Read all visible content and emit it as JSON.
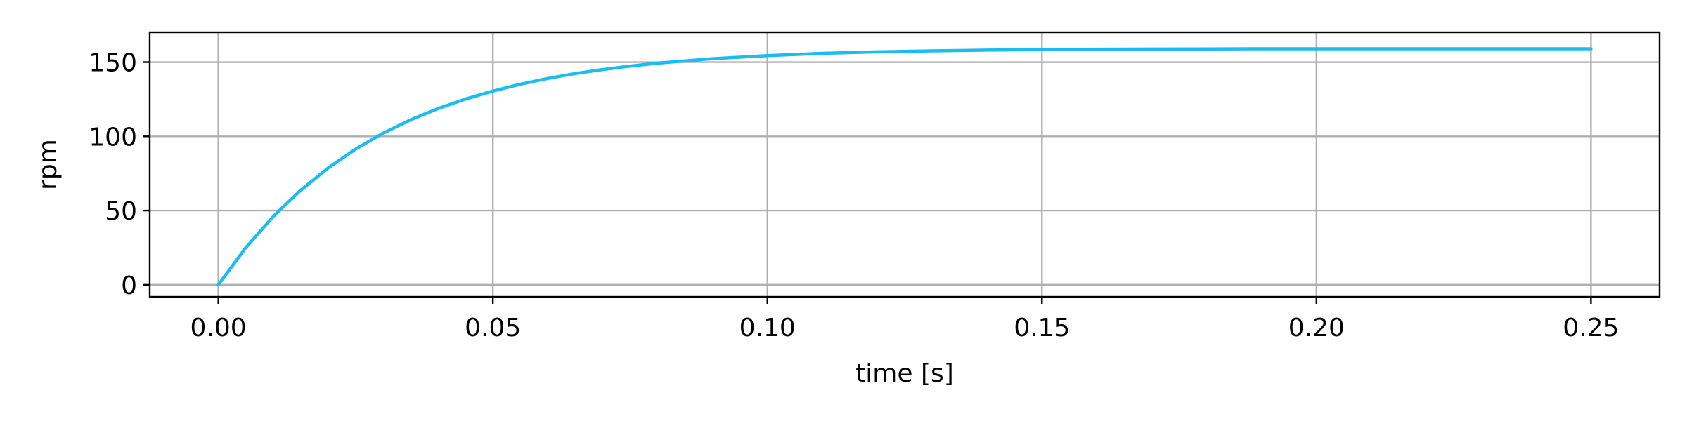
{
  "chart_data": {
    "type": "line",
    "xlabel": "time [s]",
    "ylabel": "rpm",
    "xlim": [
      -0.0125,
      0.2625
    ],
    "ylim": [
      -8.1,
      170.1
    ],
    "xticks": [
      0.0,
      0.05,
      0.1,
      0.15,
      0.2,
      0.25
    ],
    "xtick_labels": [
      "0.00",
      "0.05",
      "0.10",
      "0.15",
      "0.20",
      "0.25"
    ],
    "yticks": [
      0,
      50,
      100,
      150
    ],
    "ytick_labels": [
      "0",
      "50",
      "100",
      "150"
    ],
    "grid": true,
    "line_color": "#1bbcf2",
    "series": [
      {
        "x": [
          0.0,
          0.005,
          0.01,
          0.015,
          0.02,
          0.025,
          0.03,
          0.035,
          0.04,
          0.045,
          0.05,
          0.055,
          0.06,
          0.065,
          0.07,
          0.075,
          0.08,
          0.09,
          0.1,
          0.11,
          0.12,
          0.13,
          0.14,
          0.15,
          0.16,
          0.17,
          0.18,
          0.19,
          0.2,
          0.21,
          0.22,
          0.23,
          0.24,
          0.25
        ],
        "y": [
          0,
          25.0,
          46.0,
          63.7,
          78.7,
          91.4,
          102.1,
          111.1,
          118.7,
          125.1,
          130.5,
          135.1,
          139.0,
          142.3,
          145.0,
          147.3,
          149.3,
          152.3,
          154.4,
          155.9,
          156.9,
          157.6,
          158.1,
          158.4,
          158.7,
          158.8,
          158.9,
          159.0,
          159.0,
          159.0,
          159.0,
          159.0,
          159.0,
          159.0
        ]
      }
    ]
  }
}
